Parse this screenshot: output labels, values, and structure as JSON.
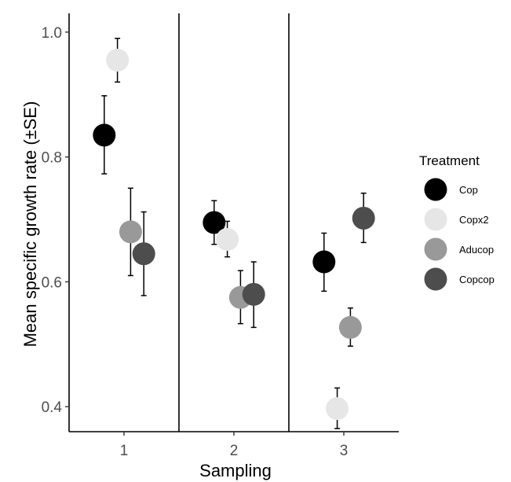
{
  "chart_data": {
    "type": "scatter",
    "xlabel": "Sampling",
    "ylabel": "Mean specific growth rate (±SE)",
    "categories": [
      "1",
      "2",
      "3"
    ],
    "ylim": [
      0.36,
      1.03
    ],
    "yticks": [
      "0.4",
      "0.6",
      "0.8",
      "1.0"
    ],
    "grid": false,
    "legend": {
      "title": "Treatment",
      "position": "right"
    },
    "series": [
      {
        "name": "Cop",
        "color": "#000000",
        "values": [
          0.835,
          0.695,
          0.632
        ],
        "se_low": [
          0.773,
          0.66,
          0.585
        ],
        "se_high": [
          0.898,
          0.73,
          0.678
        ]
      },
      {
        "name": "Copx2",
        "color": "#e6e6e6",
        "values": [
          0.955,
          0.668,
          0.397
        ],
        "se_low": [
          0.92,
          0.64,
          0.365
        ],
        "se_high": [
          0.99,
          0.697,
          0.43
        ]
      },
      {
        "name": "Aducop",
        "color": "#999999",
        "values": [
          0.68,
          0.575,
          0.527
        ],
        "se_low": [
          0.61,
          0.533,
          0.497
        ],
        "se_high": [
          0.75,
          0.618,
          0.558
        ]
      },
      {
        "name": "Copcop",
        "color": "#4d4d4d",
        "values": [
          0.645,
          0.58,
          0.702
        ],
        "se_low": [
          0.578,
          0.527,
          0.663
        ],
        "se_high": [
          0.712,
          0.632,
          0.742
        ]
      }
    ]
  }
}
